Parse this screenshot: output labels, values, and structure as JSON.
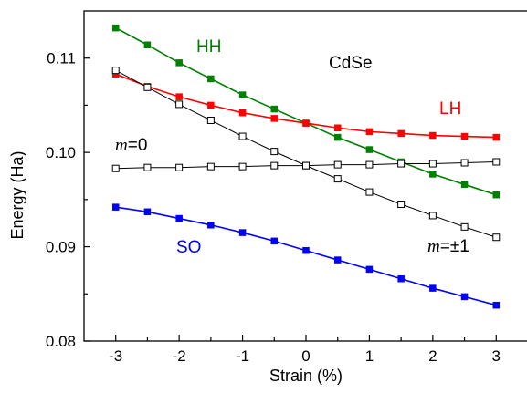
{
  "chart_data": {
    "type": "line",
    "xlabel": "Strain (%)",
    "ylabel": "Energy (Ha)",
    "xlim": [
      -3.5,
      3.5
    ],
    "ylim": [
      0.08,
      0.115
    ],
    "x_ticks": [
      -3,
      -2,
      -1,
      0,
      1,
      2,
      3
    ],
    "x_tick_labels": [
      "-3",
      "-2",
      "-1",
      "0",
      "1",
      "2",
      "3"
    ],
    "y_ticks": [
      0.08,
      0.09,
      0.1,
      0.11
    ],
    "y_tick_labels": [
      "0.08",
      "0.09",
      "0.10",
      "0.11"
    ],
    "x": [
      -3,
      -2.5,
      -2,
      -1.5,
      -1,
      -0.5,
      0,
      0.5,
      1,
      1.5,
      2,
      2.5,
      3
    ],
    "series": [
      {
        "name": "HH",
        "color": "#008000",
        "marker": "filled-square",
        "values": [
          0.1132,
          0.1114,
          0.1095,
          0.1078,
          0.1061,
          0.1046,
          0.1031,
          0.1016,
          0.1003,
          0.099,
          0.0977,
          0.0966,
          0.0955
        ]
      },
      {
        "name": "LH",
        "color": "#ff0000",
        "marker": "filled-square",
        "values": [
          0.1083,
          0.107,
          0.1059,
          0.105,
          0.1042,
          0.1036,
          0.1031,
          0.1026,
          0.1022,
          0.102,
          0.1018,
          0.1017,
          0.1016
        ]
      },
      {
        "name": "m=±1",
        "color": "#000000",
        "marker": "open-square",
        "values": [
          0.1087,
          0.1069,
          0.1051,
          0.1034,
          0.1017,
          0.1001,
          0.0986,
          0.0972,
          0.0958,
          0.0945,
          0.0933,
          0.0921,
          0.091
        ]
      },
      {
        "name": "m=0",
        "color": "#000000",
        "marker": "open-square",
        "values": [
          0.0983,
          0.0984,
          0.0984,
          0.0985,
          0.0985,
          0.0986,
          0.0986,
          0.0987,
          0.0987,
          0.0988,
          0.0988,
          0.0989,
          0.099
        ]
      },
      {
        "name": "SO",
        "color": "#0000ff",
        "marker": "filled-square",
        "values": [
          0.0942,
          0.0937,
          0.093,
          0.0923,
          0.0915,
          0.0906,
          0.0896,
          0.0886,
          0.0876,
          0.0866,
          0.0856,
          0.0847,
          0.0838
        ]
      }
    ],
    "annotations": {
      "material": "CdSe",
      "hh": "HH",
      "lh": "LH",
      "so": "SO",
      "m0_italic": "m",
      "m0_rest": "=0",
      "m1_italic": "m",
      "m1_rest": "=±1"
    },
    "grid": false,
    "legend": "none"
  }
}
